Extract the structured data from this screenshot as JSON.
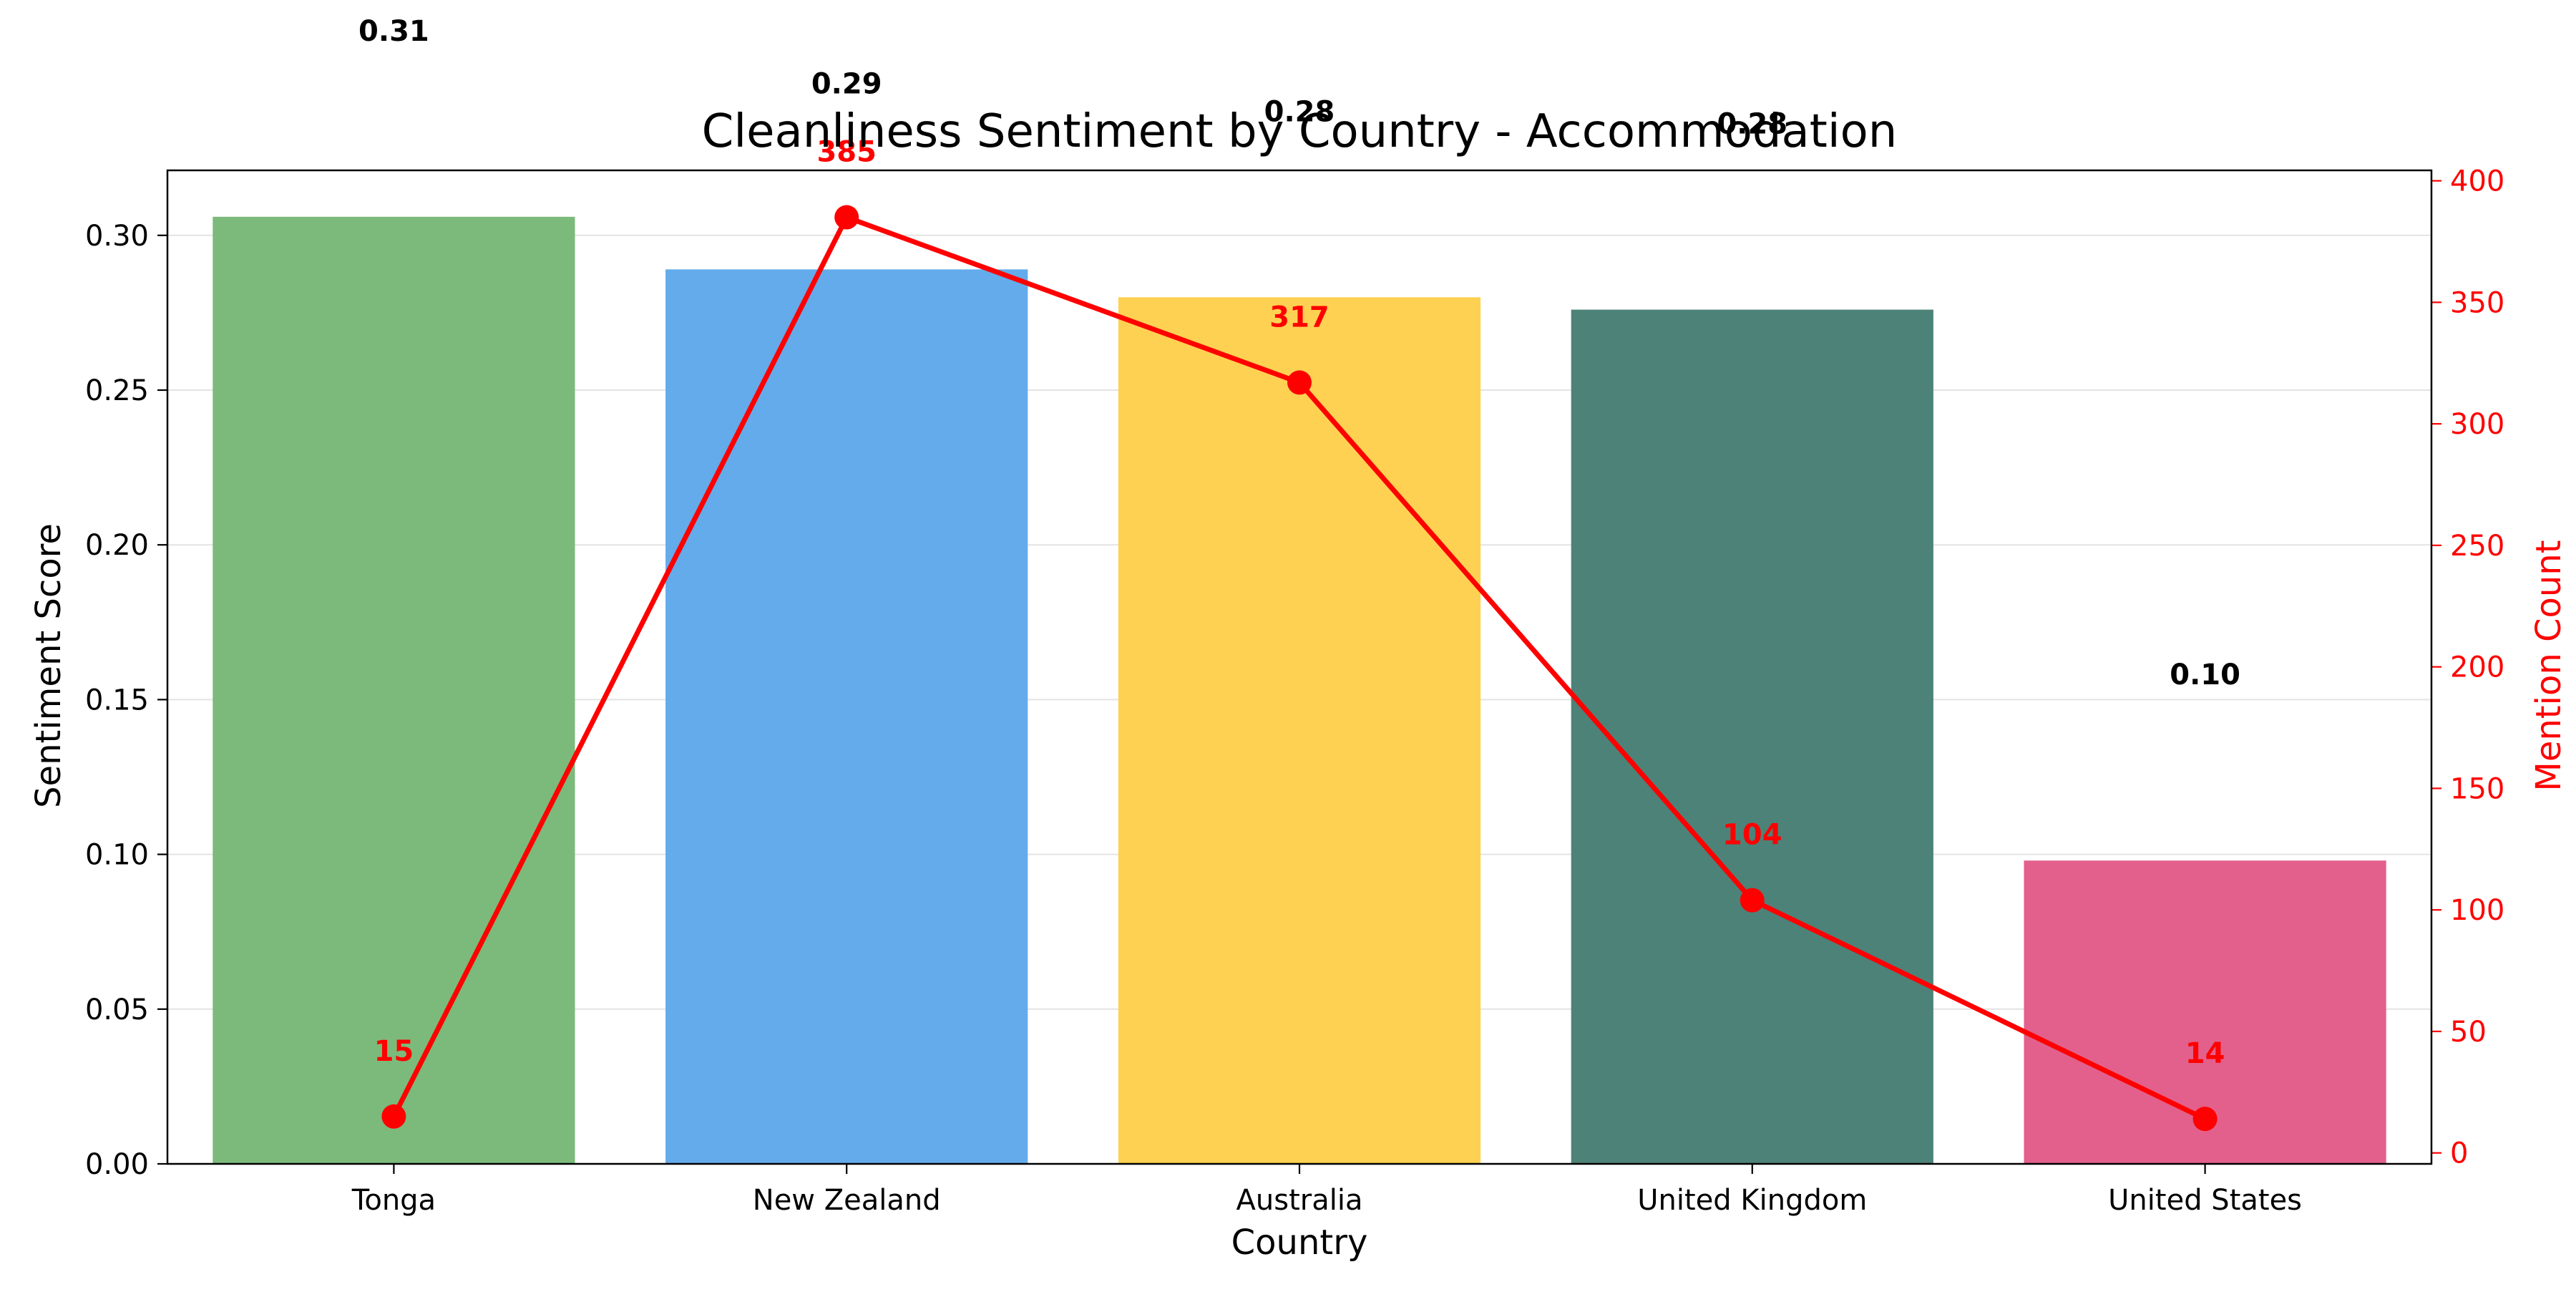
{
  "chart_data": {
    "type": "bar",
    "title": "Cleanliness Sentiment by Country - Accommodation",
    "xlabel": "Country",
    "ylabel": "Sentiment Score",
    "y2label": "Mention Count",
    "categories": [
      "Tonga",
      "New Zealand",
      "Australia",
      "United Kingdom",
      "United States"
    ],
    "series": [
      {
        "type": "bar",
        "axis": "left",
        "values": [
          0.306,
          0.289,
          0.28,
          0.276,
          0.098
        ],
        "value_labels": [
          "0.31",
          "0.29",
          "0.28",
          "0.28",
          "0.10"
        ],
        "colors": [
          "#7cba7c",
          "#63abeb",
          "#fed152",
          "#4d8278",
          "#e3608c"
        ]
      },
      {
        "type": "line",
        "axis": "right",
        "values": [
          15,
          385,
          317,
          104,
          14
        ],
        "value_labels": [
          "15",
          "385",
          "317",
          "104",
          "14"
        ],
        "color": "#ff0000"
      }
    ],
    "ylim": [
      0,
      0.321
    ],
    "yticks": [
      "0.00",
      "0.05",
      "0.10",
      "0.15",
      "0.20",
      "0.25",
      "0.30"
    ],
    "y2lim": [
      -4.5,
      404.3
    ],
    "y2ticks": [
      "0",
      "50",
      "100",
      "150",
      "200",
      "250",
      "300",
      "350",
      "400"
    ],
    "grid": "horizontal",
    "legend": "none"
  }
}
